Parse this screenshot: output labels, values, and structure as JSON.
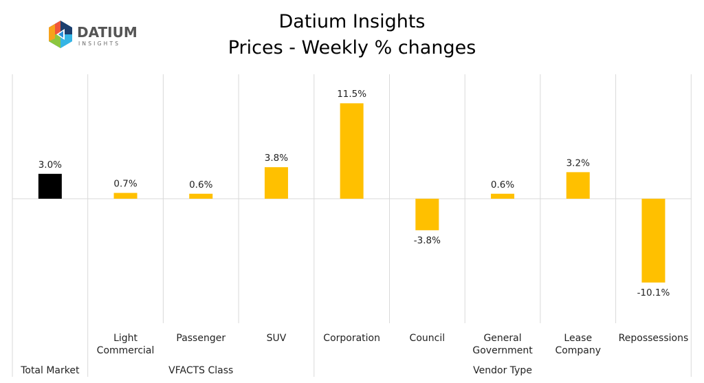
{
  "logo": {
    "text": "DATIUM",
    "subtext": "INSIGHTS"
  },
  "chart_data": {
    "type": "bar",
    "title": "Datium Insights",
    "subtitle": "Prices - Weekly % changes",
    "categories": [
      "Total Market",
      "Light Commercial",
      "Passenger",
      "SUV",
      "Corporation",
      "Council",
      "General Government",
      "Lease Company",
      "Repossessions"
    ],
    "category_lines": [
      [
        "Total Market"
      ],
      [
        "Light",
        "Commercial"
      ],
      [
        "Passenger"
      ],
      [
        "SUV"
      ],
      [
        "Corporation"
      ],
      [
        "Council"
      ],
      [
        "General",
        "Government"
      ],
      [
        "Lease",
        "Company"
      ],
      [
        "Repossessions"
      ]
    ],
    "groups": [
      {
        "label": "Total Market",
        "count": 1
      },
      {
        "label": "VFACTS Class",
        "count": 3
      },
      {
        "label": "Vendor Type",
        "count": 5
      }
    ],
    "values": [
      3.0,
      0.7,
      0.6,
      3.8,
      11.5,
      -3.8,
      0.6,
      3.2,
      -10.1
    ],
    "data_labels": [
      "3.0%",
      "0.7%",
      "0.6%",
      "3.8%",
      "11.5%",
      "-3.8%",
      "0.6%",
      "3.2%",
      "-10.1%"
    ],
    "colors": [
      "#000000",
      "#FFC000",
      "#FFC000",
      "#FFC000",
      "#FFC000",
      "#FFC000",
      "#FFC000",
      "#FFC000",
      "#FFC000"
    ],
    "ylim": [
      -15,
      15
    ],
    "grid": false,
    "legend": "none"
  }
}
